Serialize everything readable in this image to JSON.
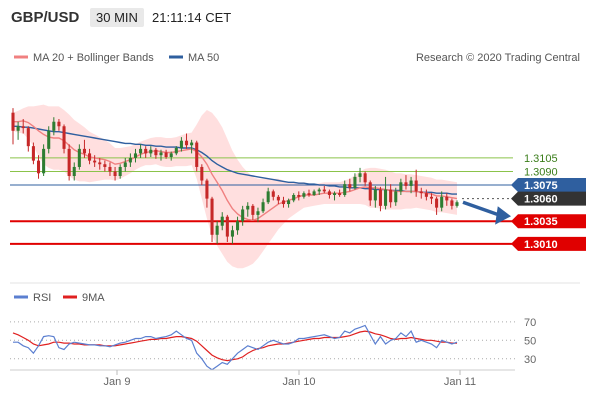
{
  "header": {
    "pair": "GBP/USD",
    "timeframe": "30 MIN",
    "time": "21:11:14 CET"
  },
  "legend_main": [
    {
      "name": "MA 20 + Bollinger Bands",
      "color": "#f08080"
    },
    {
      "name": "MA 50",
      "color": "#2f5f9f"
    }
  ],
  "attribution": "Research © 2020 Trading Central",
  "legend_rsi": [
    {
      "name": "RSI",
      "color": "#5b7fd0"
    },
    {
      "name": "9MA",
      "color": "#e02020"
    }
  ],
  "colors": {
    "up": "#2e7d32",
    "down": "#c62828",
    "ma20": "#f08080",
    "ma50": "#2f5f9f",
    "bb": "#ffd9d9",
    "resistance": "#8bc34a",
    "support": "#e00000",
    "arrow": "#2f5f9f"
  },
  "chart_data": [
    {
      "type": "candlestick",
      "ylim": [
        1.297,
        1.32
      ],
      "x_ticks": [
        "Jan 9",
        "Jan 10",
        "Jan 11"
      ],
      "levels": [
        {
          "label": "1.3105",
          "value": 1.3105,
          "style": "resistance"
        },
        {
          "label": "1.3090",
          "value": 1.309,
          "style": "resistance"
        },
        {
          "label": "1.3075",
          "value": 1.3075,
          "style": "current"
        },
        {
          "label": "1.3060",
          "value": 1.306,
          "style": "pivot"
        },
        {
          "label": "1.3035",
          "value": 1.3035,
          "style": "support"
        },
        {
          "label": "1.3010",
          "value": 1.301,
          "style": "support"
        }
      ],
      "candles": [
        [
          1.3155,
          1.316,
          1.312,
          1.3135
        ],
        [
          1.3135,
          1.3145,
          1.3125,
          1.314
        ],
        [
          1.314,
          1.3148,
          1.3132,
          1.3138
        ],
        [
          1.3138,
          1.314,
          1.3112,
          1.3118
        ],
        [
          1.3118,
          1.3122,
          1.3098,
          1.3102
        ],
        [
          1.3102,
          1.3108,
          1.3082,
          1.3088
        ],
        [
          1.3088,
          1.312,
          1.3085,
          1.3115
        ],
        [
          1.3115,
          1.314,
          1.311,
          1.3135
        ],
        [
          1.3135,
          1.315,
          1.313,
          1.3145
        ],
        [
          1.3145,
          1.3148,
          1.3135,
          1.314
        ],
        [
          1.314,
          1.3142,
          1.311,
          1.3115
        ],
        [
          1.3115,
          1.312,
          1.308,
          1.3085
        ],
        [
          1.3085,
          1.31,
          1.308,
          1.3095
        ],
        [
          1.3095,
          1.312,
          1.3092,
          1.3115
        ],
        [
          1.3115,
          1.3125,
          1.3105,
          1.311
        ],
        [
          1.311,
          1.3115,
          1.3098,
          1.3102
        ],
        [
          1.3102,
          1.3108,
          1.3095,
          1.31
        ],
        [
          1.31,
          1.3105,
          1.3092,
          1.3098
        ],
        [
          1.3098,
          1.3102,
          1.309,
          1.3095
        ],
        [
          1.3095,
          1.31,
          1.3085,
          1.309
        ],
        [
          1.309,
          1.3095,
          1.308,
          1.3085
        ],
        [
          1.3085,
          1.3098,
          1.3082,
          1.3095
        ],
        [
          1.3095,
          1.3105,
          1.309,
          1.31
        ],
        [
          1.31,
          1.311,
          1.3095,
          1.3105
        ],
        [
          1.3105,
          1.3115,
          1.31,
          1.311
        ],
        [
          1.311,
          1.312,
          1.3105,
          1.3115
        ],
        [
          1.3115,
          1.3118,
          1.3105,
          1.311
        ],
        [
          1.311,
          1.3118,
          1.3106,
          1.3114
        ],
        [
          1.3114,
          1.3116,
          1.3104,
          1.3108
        ],
        [
          1.3108,
          1.3114,
          1.3102,
          1.3111
        ],
        [
          1.3111,
          1.3114,
          1.3104,
          1.3106
        ],
        [
          1.3106,
          1.3112,
          1.3102,
          1.311
        ],
        [
          1.311,
          1.3118,
          1.3108,
          1.3116
        ],
        [
          1.3116,
          1.3128,
          1.3112,
          1.3124
        ],
        [
          1.3124,
          1.3132,
          1.3115,
          1.3119
        ],
        [
          1.3119,
          1.3125,
          1.311,
          1.3122
        ],
        [
          1.3122,
          1.3124,
          1.309,
          1.3095
        ],
        [
          1.3095,
          1.3098,
          1.3075,
          1.308
        ],
        [
          1.308,
          1.3082,
          1.305,
          1.306
        ],
        [
          1.306,
          1.3062,
          1.3012,
          1.302
        ],
        [
          1.302,
          1.3035,
          1.301,
          1.303
        ],
        [
          1.303,
          1.3045,
          1.3025,
          1.304
        ],
        [
          1.304,
          1.3042,
          1.3012,
          1.3018
        ],
        [
          1.3018,
          1.303,
          1.301,
          1.3025
        ],
        [
          1.3025,
          1.304,
          1.302,
          1.3035
        ],
        [
          1.3035,
          1.3052,
          1.303,
          1.3048
        ],
        [
          1.3048,
          1.3056,
          1.304,
          1.3052
        ],
        [
          1.3052,
          1.3054,
          1.3036,
          1.3042
        ],
        [
          1.3042,
          1.305,
          1.3034,
          1.3046
        ],
        [
          1.3046,
          1.306,
          1.3044,
          1.3056
        ],
        [
          1.3056,
          1.3072,
          1.3054,
          1.3068
        ],
        [
          1.3068,
          1.307,
          1.3058,
          1.3062
        ],
        [
          1.3062,
          1.3064,
          1.3054,
          1.3058
        ],
        [
          1.3058,
          1.3062,
          1.305,
          1.3054
        ],
        [
          1.3054,
          1.306,
          1.305,
          1.3058
        ],
        [
          1.3058,
          1.3066,
          1.3056,
          1.3064
        ],
        [
          1.3064,
          1.3068,
          1.3058,
          1.3062
        ],
        [
          1.3062,
          1.3068,
          1.306,
          1.3066
        ],
        [
          1.3066,
          1.307,
          1.3062,
          1.3064
        ],
        [
          1.3064,
          1.307,
          1.3063,
          1.3068
        ],
        [
          1.3068,
          1.3072,
          1.3064,
          1.307
        ],
        [
          1.307,
          1.3074,
          1.3066,
          1.3068
        ],
        [
          1.3068,
          1.307,
          1.306,
          1.3064
        ],
        [
          1.3064,
          1.3068,
          1.3058,
          1.3066
        ],
        [
          1.3066,
          1.307,
          1.3062,
          1.3064
        ],
        [
          1.3064,
          1.308,
          1.3062,
          1.3076
        ],
        [
          1.3076,
          1.3082,
          1.3068,
          1.3072
        ],
        [
          1.3072,
          1.3088,
          1.307,
          1.3084
        ],
        [
          1.3084,
          1.3094,
          1.3078,
          1.3088
        ],
        [
          1.3088,
          1.309,
          1.3074,
          1.3078
        ],
        [
          1.3078,
          1.308,
          1.3052,
          1.3058
        ],
        [
          1.3058,
          1.3074,
          1.305,
          1.307
        ],
        [
          1.307,
          1.3073,
          1.3046,
          1.3052
        ],
        [
          1.3052,
          1.3084,
          1.3048,
          1.307
        ],
        [
          1.307,
          1.3076,
          1.305,
          1.3056
        ],
        [
          1.3056,
          1.3072,
          1.3052,
          1.3068
        ],
        [
          1.3068,
          1.3082,
          1.3064,
          1.3078
        ],
        [
          1.3078,
          1.3086,
          1.307,
          1.3074
        ],
        [
          1.3074,
          1.3084,
          1.3066,
          1.308
        ],
        [
          1.308,
          1.3092,
          1.3062,
          1.3068
        ],
        [
          1.3068,
          1.3072,
          1.306,
          1.3066
        ],
        [
          1.3066,
          1.307,
          1.3058,
          1.3062
        ],
        [
          1.3062,
          1.3066,
          1.3054,
          1.306
        ],
        [
          1.306,
          1.3062,
          1.3042,
          1.305
        ],
        [
          1.305,
          1.3068,
          1.3046,
          1.3062
        ],
        [
          1.3062,
          1.3066,
          1.3052,
          1.3058
        ],
        [
          1.3058,
          1.306,
          1.3048,
          1.3052
        ],
        [
          1.3052,
          1.3058,
          1.305,
          1.3056
        ]
      ],
      "ma20": [
        1.3145,
        1.3145,
        1.3146,
        1.3144,
        1.314,
        1.3135,
        1.3131,
        1.3128,
        1.3127,
        1.3127,
        1.3124,
        1.3119,
        1.3114,
        1.3111,
        1.3109,
        1.3106,
        1.3105,
        1.3104,
        1.3103,
        1.3101,
        1.3098,
        1.3099,
        1.3101,
        1.3103,
        1.3106,
        1.3109,
        1.3111,
        1.3112,
        1.3113,
        1.3112,
        1.3111,
        1.3111,
        1.3112,
        1.3113,
        1.3114,
        1.3115,
        1.3112,
        1.3106,
        1.3098,
        1.3087,
        1.3078,
        1.3069,
        1.3058,
        1.3049,
        1.3043,
        1.3039,
        1.3037,
        1.3036,
        1.3038,
        1.3042,
        1.3046,
        1.305,
        1.3054,
        1.3056,
        1.3058,
        1.306,
        1.3062,
        1.3064,
        1.3064,
        1.3064,
        1.3065,
        1.3066,
        1.3066,
        1.3066,
        1.3066,
        1.3067,
        1.3068,
        1.307,
        1.3072,
        1.3073,
        1.3072,
        1.3072,
        1.3071,
        1.307,
        1.3069,
        1.3068,
        1.3068,
        1.3068,
        1.3068,
        1.3068,
        1.3067,
        1.3066,
        1.3065,
        1.3063,
        1.3063,
        1.3062,
        1.3061,
        1.306
      ],
      "ma50": [
        1.314,
        1.314,
        1.3139,
        1.3139,
        1.3138,
        1.3137,
        1.3136,
        1.3135,
        1.3134,
        1.3134,
        1.3133,
        1.3132,
        1.3131,
        1.313,
        1.3129,
        1.3128,
        1.3127,
        1.3126,
        1.3125,
        1.3124,
        1.3123,
        1.3122,
        1.3121,
        1.3121,
        1.312,
        1.312,
        1.3119,
        1.3119,
        1.3118,
        1.3118,
        1.3117,
        1.3117,
        1.3117,
        1.3116,
        1.3116,
        1.3116,
        1.3114,
        1.3111,
        1.3107,
        1.3102,
        1.3098,
        1.3095,
        1.3092,
        1.309,
        1.3088,
        1.3087,
        1.3086,
        1.3085,
        1.3084,
        1.3083,
        1.3082,
        1.3081,
        1.308,
        1.3079,
        1.3078,
        1.3078,
        1.3077,
        1.3077,
        1.3076,
        1.3076,
        1.3075,
        1.3075,
        1.3074,
        1.3074,
        1.3073,
        1.3073,
        1.3072,
        1.3072,
        1.3072,
        1.3071,
        1.3071,
        1.307,
        1.307,
        1.307,
        1.3069,
        1.3069,
        1.3069,
        1.3068,
        1.3068,
        1.3068,
        1.3067,
        1.3067,
        1.3067,
        1.3066,
        1.3066,
        1.3066,
        1.3065,
        1.3065
      ],
      "bb_width": [
        0.001,
        0.0012,
        0.0014,
        0.0018,
        0.0022,
        0.0028,
        0.0033,
        0.0034,
        0.0035,
        0.0035,
        0.0034,
        0.0034,
        0.0033,
        0.0032,
        0.003,
        0.0028,
        0.0026,
        0.0024,
        0.0022,
        0.002,
        0.0018,
        0.0017,
        0.0016,
        0.0015,
        0.0014,
        0.0014,
        0.0014,
        0.0015,
        0.0015,
        0.0016,
        0.0016,
        0.0016,
        0.0016,
        0.0017,
        0.0018,
        0.0018,
        0.003,
        0.0046,
        0.006,
        0.0068,
        0.007,
        0.007,
        0.0068,
        0.0064,
        0.006,
        0.0056,
        0.0052,
        0.0048,
        0.0044,
        0.004,
        0.0036,
        0.0032,
        0.0028,
        0.0024,
        0.002,
        0.0018,
        0.0016,
        0.0014,
        0.0013,
        0.0012,
        0.0012,
        0.0012,
        0.0012,
        0.0012,
        0.0012,
        0.0013,
        0.0014,
        0.0016,
        0.0018,
        0.002,
        0.0022,
        0.0022,
        0.0022,
        0.0022,
        0.0021,
        0.002,
        0.002,
        0.0019,
        0.0019,
        0.0018,
        0.0018,
        0.0018,
        0.0018,
        0.0018,
        0.0018,
        0.0018,
        0.0018,
        0.0018
      ]
    },
    {
      "type": "line",
      "ylim": [
        20,
        85
      ],
      "y_ticks": [
        "70",
        "50",
        "30"
      ],
      "series": [
        {
          "name": "RSI",
          "values": [
            48,
            48,
            44,
            42,
            36,
            44,
            54,
            55,
            54,
            42,
            40,
            46,
            48,
            47,
            46,
            45,
            45,
            44,
            44,
            43,
            45,
            47,
            48,
            50,
            52,
            52,
            54,
            54,
            52,
            53,
            54,
            56,
            60,
            56,
            52,
            50,
            36,
            30,
            22,
            18,
            22,
            26,
            24,
            30,
            36,
            40,
            44,
            42,
            40,
            44,
            48,
            50,
            48,
            46,
            46,
            48,
            52,
            52,
            53,
            54,
            55,
            56,
            54,
            52,
            53,
            60,
            58,
            62,
            64,
            66,
            56,
            46,
            54,
            46,
            50,
            52,
            58,
            54,
            60,
            48,
            50,
            48,
            46,
            42,
            50,
            48,
            46,
            48
          ]
        },
        {
          "name": "9MA",
          "values": [
            58,
            56,
            53,
            50,
            46,
            44,
            45,
            46,
            48,
            48,
            47,
            47,
            46,
            46,
            45,
            45,
            45,
            45,
            44,
            44,
            44,
            45,
            46,
            47,
            48,
            49,
            50,
            51,
            51,
            52,
            52,
            53,
            54,
            54,
            53,
            52,
            49,
            44,
            39,
            34,
            31,
            29,
            28,
            29,
            30,
            32,
            36,
            39,
            41,
            42,
            44,
            45,
            46,
            46,
            47,
            48,
            49,
            50,
            51,
            52,
            52,
            53,
            53,
            53,
            53,
            54,
            55,
            57,
            59,
            60,
            59,
            57,
            56,
            54,
            52,
            51,
            52,
            52,
            53,
            52,
            51,
            50,
            50,
            49,
            48,
            48,
            47,
            47
          ]
        }
      ]
    }
  ]
}
